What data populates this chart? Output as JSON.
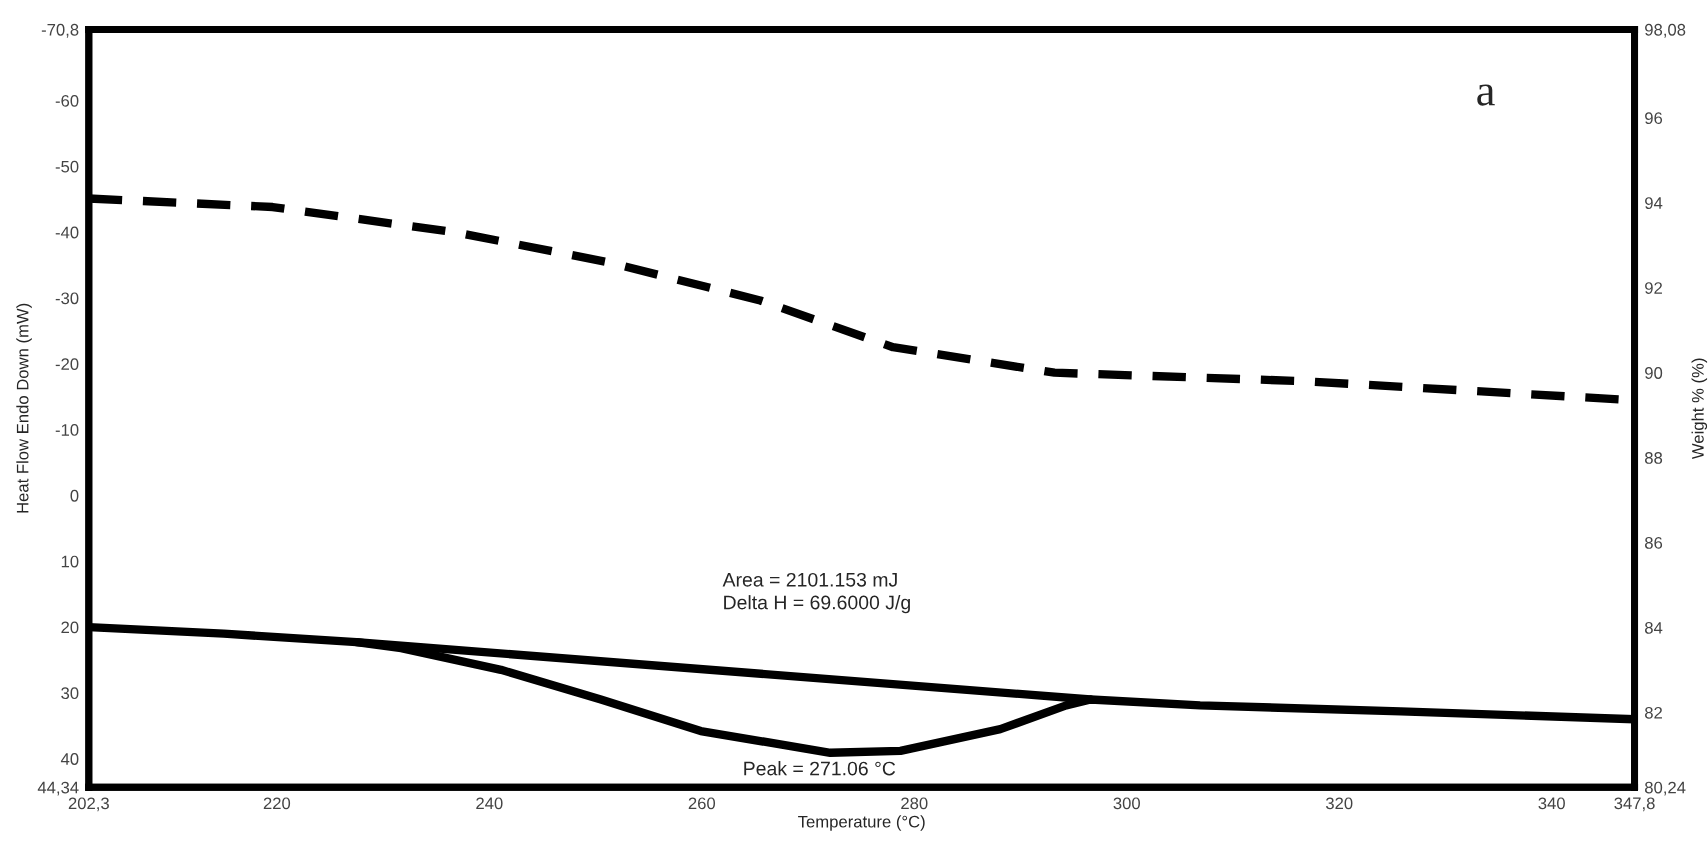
{
  "chart_data": {
    "type": "line",
    "xlabel": "Temperature (°C)",
    "ylabel": "Heat Flow Endo Down (mW)",
    "y2label": "Weight % (%)",
    "series": [
      {
        "line_style": "dashed",
        "axis": "y2",
        "color": "#000000",
        "x": [
          202.3,
          219.6,
          236.9,
          251.2,
          265.5,
          278.0,
          293.2,
          316.7,
          347.8
        ],
        "values": [
          94.1,
          93.9,
          93.3,
          92.6,
          91.7,
          90.6,
          90.0,
          89.8,
          89.35
        ]
      },
      {
        "line_style": "solid",
        "color": "#000000",
        "x": [
          202.3,
          215.0,
          227.5,
          231.7,
          241.1,
          250.5,
          259.9,
          272.1,
          278.7,
          288.1,
          294.3,
          296.6,
          306.9,
          325.8,
          347.8
        ],
        "values": [
          20.0,
          21.0,
          22.3,
          23.2,
          26.5,
          31.0,
          35.8,
          39.1,
          38.8,
          35.5,
          31.9,
          31.0,
          31.9,
          32.8,
          34.0
        ]
      },
      {
        "line_style": "solid",
        "color": "#000000",
        "x": [
          227.5,
          296.6
        ],
        "values": [
          22.3,
          31.0
        ]
      }
    ],
    "xlim": [
      202.3,
      347.8
    ],
    "xticks": [
      {
        "value": 202.3,
        "label": "202,3"
      },
      220,
      240,
      260,
      280,
      300,
      320,
      340,
      {
        "value": 347.8,
        "label": "347,8"
      }
    ],
    "ylim": [
      44.34,
      -70.8
    ],
    "yticks": [
      {
        "value": -70.8,
        "label": "-70,8"
      },
      -60,
      -50,
      -40,
      -30,
      -20,
      -10,
      0,
      10,
      20,
      30,
      40,
      {
        "value": 44.34,
        "label": "44,34"
      }
    ],
    "y2lim": [
      80.24,
      98.08
    ],
    "y2ticks": [
      {
        "value": 80.24,
        "label": "80,24"
      },
      82,
      84,
      86,
      88,
      90,
      92,
      94,
      96,
      {
        "value": 98.08,
        "label": "98,08"
      }
    ],
    "annotations": [
      "Area = 2101.153 mJ",
      "Delta H = 69.6000 J/g",
      {
        "text": "Peak = 271.06 °C",
        "x": 271.06,
        "y": 39.1
      },
      "a"
    ],
    "grid": false,
    "legend": false
  }
}
